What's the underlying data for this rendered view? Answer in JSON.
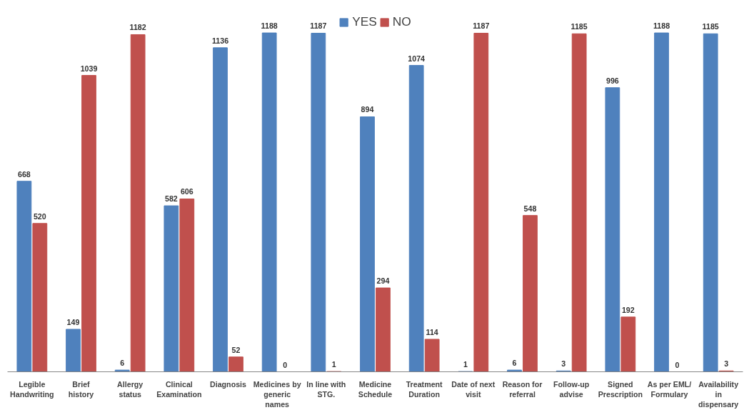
{
  "chart_data": {
    "type": "bar",
    "categories": [
      "Legible Handwriting",
      "Brief history",
      "Allergy status",
      "Clinical Examination",
      "Diagnosis",
      "Medicines by generic names",
      "In line with STG.",
      "Medicine Schedule",
      "Treatment Duration",
      "Date of next visit",
      "Reason for referral",
      "Follow-up advise",
      "Signed Prescription",
      "As per EML/ Formulary",
      "Availability in dispensary"
    ],
    "series": [
      {
        "name": "YES",
        "color": "#4f81bd",
        "values": [
          668,
          149,
          6,
          582,
          1136,
          1188,
          1187,
          894,
          1074,
          1,
          6,
          3,
          996,
          1188,
          1185
        ]
      },
      {
        "name": "NO",
        "color": "#c0504d",
        "values": [
          520,
          1039,
          1182,
          606,
          52,
          0,
          1,
          294,
          114,
          1187,
          548,
          1185,
          192,
          0,
          3
        ]
      }
    ],
    "data_labels": true,
    "grid": false,
    "legend": "top",
    "tick_labels": "x"
  }
}
